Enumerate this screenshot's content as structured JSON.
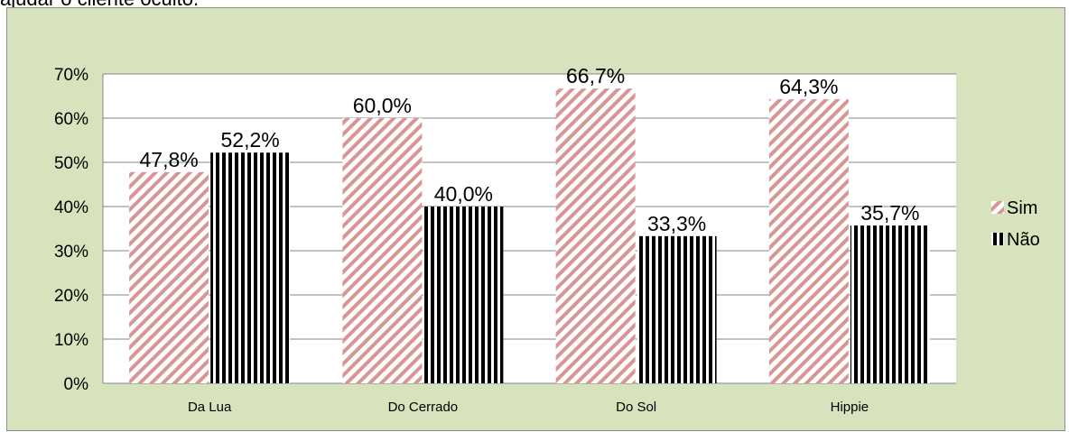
{
  "page": {
    "caption": "ajudar o cliente oculto.",
    "colors": {
      "panel_background": "#d6e3bd",
      "plot_background": "#ffffff",
      "sim_stripe": "#d99594",
      "nao_stripe": "#000000"
    }
  },
  "chart_data": {
    "type": "bar",
    "title": "",
    "xlabel": "",
    "ylabel": "",
    "categories": [
      "Da Lua",
      "Do Cerrado",
      "Do Sol",
      "Hippie"
    ],
    "series": [
      {
        "name": "Sim",
        "values": [
          47.8,
          60.0,
          66.7,
          64.3
        ],
        "labels": [
          "47,8%",
          "60,0%",
          "66,7%",
          "64,3%"
        ],
        "pattern": "diagonal-stripes",
        "color": "#d99594"
      },
      {
        "name": "Não",
        "values": [
          52.2,
          40.0,
          33.3,
          35.7
        ],
        "labels": [
          "52,2%",
          "40,0%",
          "33,3%",
          "35,7%"
        ],
        "pattern": "vertical-stripes",
        "color": "#000000"
      }
    ],
    "ylim": [
      0,
      70
    ],
    "yticks": [
      0,
      10,
      20,
      30,
      40,
      50,
      60,
      70
    ],
    "ytick_labels": [
      "0%",
      "10%",
      "20%",
      "30%",
      "40%",
      "50%",
      "60%",
      "70%"
    ],
    "grid": true,
    "legend_position": "right"
  }
}
